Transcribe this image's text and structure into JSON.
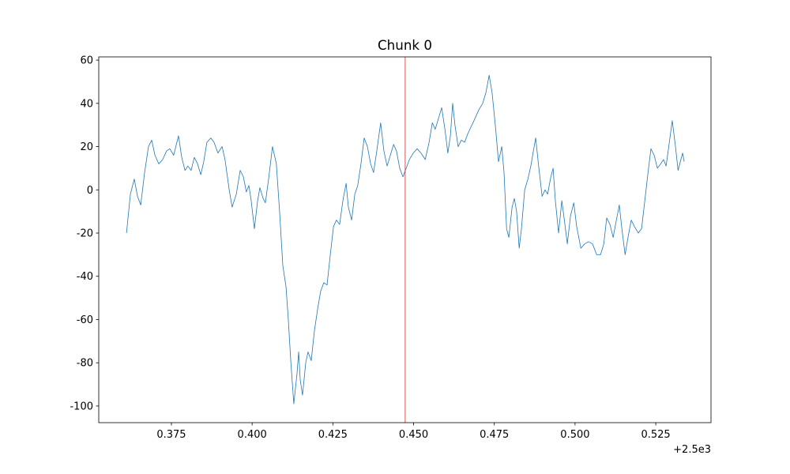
{
  "chart_data": {
    "type": "line",
    "title": "Chunk 0",
    "x": [
      2500.3611,
      2500.3623,
      2500.3635,
      2500.3645,
      2500.3655,
      2500.3667,
      2500.3679,
      2500.3689,
      2500.3699,
      2500.3711,
      2500.3723,
      2500.3735,
      2500.3745,
      2500.3757,
      2500.3772,
      2500.3782,
      2500.3792,
      2500.3801,
      2500.3811,
      2500.3821,
      2500.3831,
      2500.3841,
      2500.385,
      2500.386,
      2500.3872,
      2500.3882,
      2500.3894,
      2500.3907,
      2500.3916,
      2500.3929,
      2500.3938,
      2500.3951,
      2500.3963,
      2500.3973,
      2500.3982,
      2500.399,
      2500.3997,
      2500.4007,
      2500.4017,
      2500.4024,
      2500.4034,
      2500.4041,
      2500.4051,
      2500.4063,
      2500.4075,
      2500.4085,
      2500.4095,
      2500.4105,
      2500.4112,
      2500.412,
      2500.4129,
      2500.4139,
      2500.4144,
      2500.4149,
      2500.4156,
      2500.4166,
      2500.4173,
      2500.4183,
      2500.4193,
      2500.4203,
      2500.4212,
      2500.4222,
      2500.4232,
      2500.4242,
      2500.4252,
      2500.4261,
      2500.4271,
      2500.4281,
      2500.4291,
      2500.4298,
      2500.4308,
      2500.4318,
      2500.4327,
      2500.4337,
      2500.4347,
      2500.4357,
      2500.4367,
      2500.4376,
      2500.4386,
      2500.4398,
      2500.4408,
      2500.4418,
      2500.4428,
      2500.4438,
      2500.4447,
      2500.4457,
      2500.4467,
      2500.4477,
      2500.4487,
      2500.4499,
      2500.4511,
      2500.4523,
      2500.4536,
      2500.4548,
      2500.4558,
      2500.4567,
      2500.4577,
      2500.4587,
      2500.4597,
      2500.4606,
      2500.4614,
      2500.4621,
      2500.4628,
      2500.4638,
      2500.4648,
      2500.4658,
      2500.4668,
      2500.4687,
      2500.4702,
      2500.4714,
      2500.4724,
      2500.4734,
      2500.4743,
      2500.4753,
      2500.4763,
      2500.4773,
      2500.478,
      2500.4788,
      2500.4795,
      2500.4805,
      2500.4812,
      2500.4819,
      2500.4827,
      2500.4834,
      2500.4844,
      2500.4854,
      2500.4863,
      2500.4871,
      2500.4878,
      2500.4888,
      2500.4898,
      2500.4907,
      2500.4915,
      2500.4925,
      2500.4932,
      2500.4939,
      2500.4949,
      2500.4959,
      2500.4966,
      2500.4976,
      2500.4986,
      2500.4996,
      2500.5005,
      2500.5018,
      2500.503,
      2500.5042,
      2500.5054,
      2500.5067,
      2500.5079,
      2500.5089,
      2500.5098,
      2500.5108,
      2500.5118,
      2500.5128,
      2500.5137,
      2500.5145,
      2500.5155,
      2500.5164,
      2500.5174,
      2500.5184,
      2500.5196,
      2500.5206,
      2500.5216,
      2500.5226,
      2500.5235,
      2500.5245,
      2500.5255,
      2500.5265,
      2500.5274,
      2500.5282,
      2500.5292,
      2500.5301,
      2500.5311,
      2500.5319,
      2500.5326,
      2500.5333,
      2500.5338
    ],
    "values": [
      -20,
      -2,
      5,
      -3,
      -7,
      8,
      20,
      23,
      16,
      12,
      14,
      18,
      19,
      16,
      25,
      15,
      9,
      11,
      9,
      15,
      12,
      7,
      13,
      22,
      24,
      22,
      17,
      20,
      14,
      0,
      -8,
      -2,
      9,
      6,
      -1,
      2,
      -5,
      -18,
      -5,
      1,
      -4,
      -6,
      5,
      20,
      12,
      -10,
      -35,
      -45,
      -60,
      -80,
      -99,
      -85,
      -75,
      -88,
      -95,
      -80,
      -75,
      -79,
      -65,
      -55,
      -47,
      -43,
      -44,
      -30,
      -17,
      -14,
      -16,
      -5,
      3,
      -8,
      -14,
      -2,
      2,
      12,
      24,
      20,
      12,
      8,
      18,
      31,
      18,
      11,
      16,
      21,
      18,
      10,
      6,
      10,
      14,
      17,
      19,
      17,
      14,
      22,
      31,
      28,
      33,
      38,
      28,
      17,
      25,
      40,
      30,
      20,
      23,
      22,
      26,
      32,
      37,
      40,
      45,
      53,
      45,
      30,
      13,
      20,
      8,
      -18,
      -22,
      -8,
      -4,
      -10,
      -27,
      -18,
      0,
      5,
      11,
      18,
      24,
      10,
      -3,
      0,
      -2,
      6,
      10,
      -5,
      -20,
      -5,
      -13,
      -25,
      -12,
      -6,
      -17,
      -27,
      -25,
      -24,
      -25,
      -30,
      -30,
      -25,
      -13,
      -16,
      -22,
      -14,
      -7,
      -18,
      -30,
      -22,
      -14,
      -17,
      -20,
      -18,
      -5,
      8,
      19,
      16,
      10,
      12,
      14,
      11,
      22,
      32,
      20,
      9,
      13,
      17,
      13
    ],
    "color": "#1f77b4",
    "vline": {
      "x": 2500.4474,
      "color": "#d62728"
    },
    "xlim": [
      2500.3525,
      2500.5421
    ],
    "xticks": [
      {
        "value": 2500.375,
        "label": "0.375"
      },
      {
        "value": 2500.4,
        "label": "0.400"
      },
      {
        "value": 2500.425,
        "label": "0.425"
      },
      {
        "value": 2500.45,
        "label": "0.450"
      },
      {
        "value": 2500.475,
        "label": "0.475"
      },
      {
        "value": 2500.5,
        "label": "0.500"
      },
      {
        "value": 2500.525,
        "label": "0.525"
      }
    ],
    "x_offset_label": "+2.5e3",
    "ylim": [
      -107.7,
      61.5
    ],
    "yticks": [
      -100,
      -80,
      -60,
      -40,
      -20,
      0,
      20,
      40,
      60
    ],
    "grid": false
  }
}
